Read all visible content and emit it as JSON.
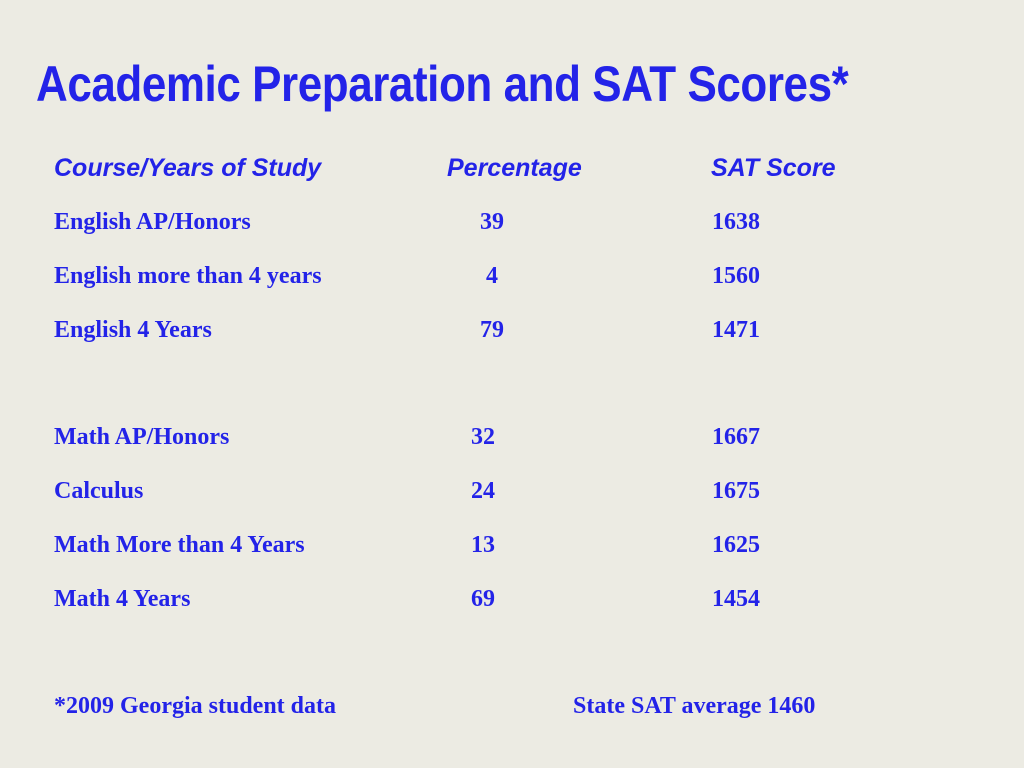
{
  "title": "Academic Preparation and SAT Scores*",
  "table": {
    "headers": {
      "course": "Course/Years of Study",
      "percentage": "Percentage",
      "sat": "SAT Score"
    },
    "english_rows": [
      {
        "course": "English AP/Honors",
        "percentage": "39",
        "sat": "1638"
      },
      {
        "course": "English more than 4 years",
        "percentage": "4",
        "sat": "1560"
      },
      {
        "course": "English 4 Years",
        "percentage": "79",
        "sat": "1471"
      }
    ],
    "math_rows": [
      {
        "course": "Math AP/Honors",
        "percentage": "32",
        "sat": "1667"
      },
      {
        "course": "Calculus",
        "percentage": "24",
        "sat": "1675"
      },
      {
        "course": "Math More than 4 Years",
        "percentage": "13",
        "sat": "1625"
      },
      {
        "course": "Math 4 Years",
        "percentage": "69",
        "sat": "1454"
      }
    ]
  },
  "footer": {
    "source_note": "*2009 Georgia student data",
    "state_average": "State SAT average 1460"
  },
  "colors": {
    "text": "#2323e8",
    "background": "#ecebe3"
  }
}
